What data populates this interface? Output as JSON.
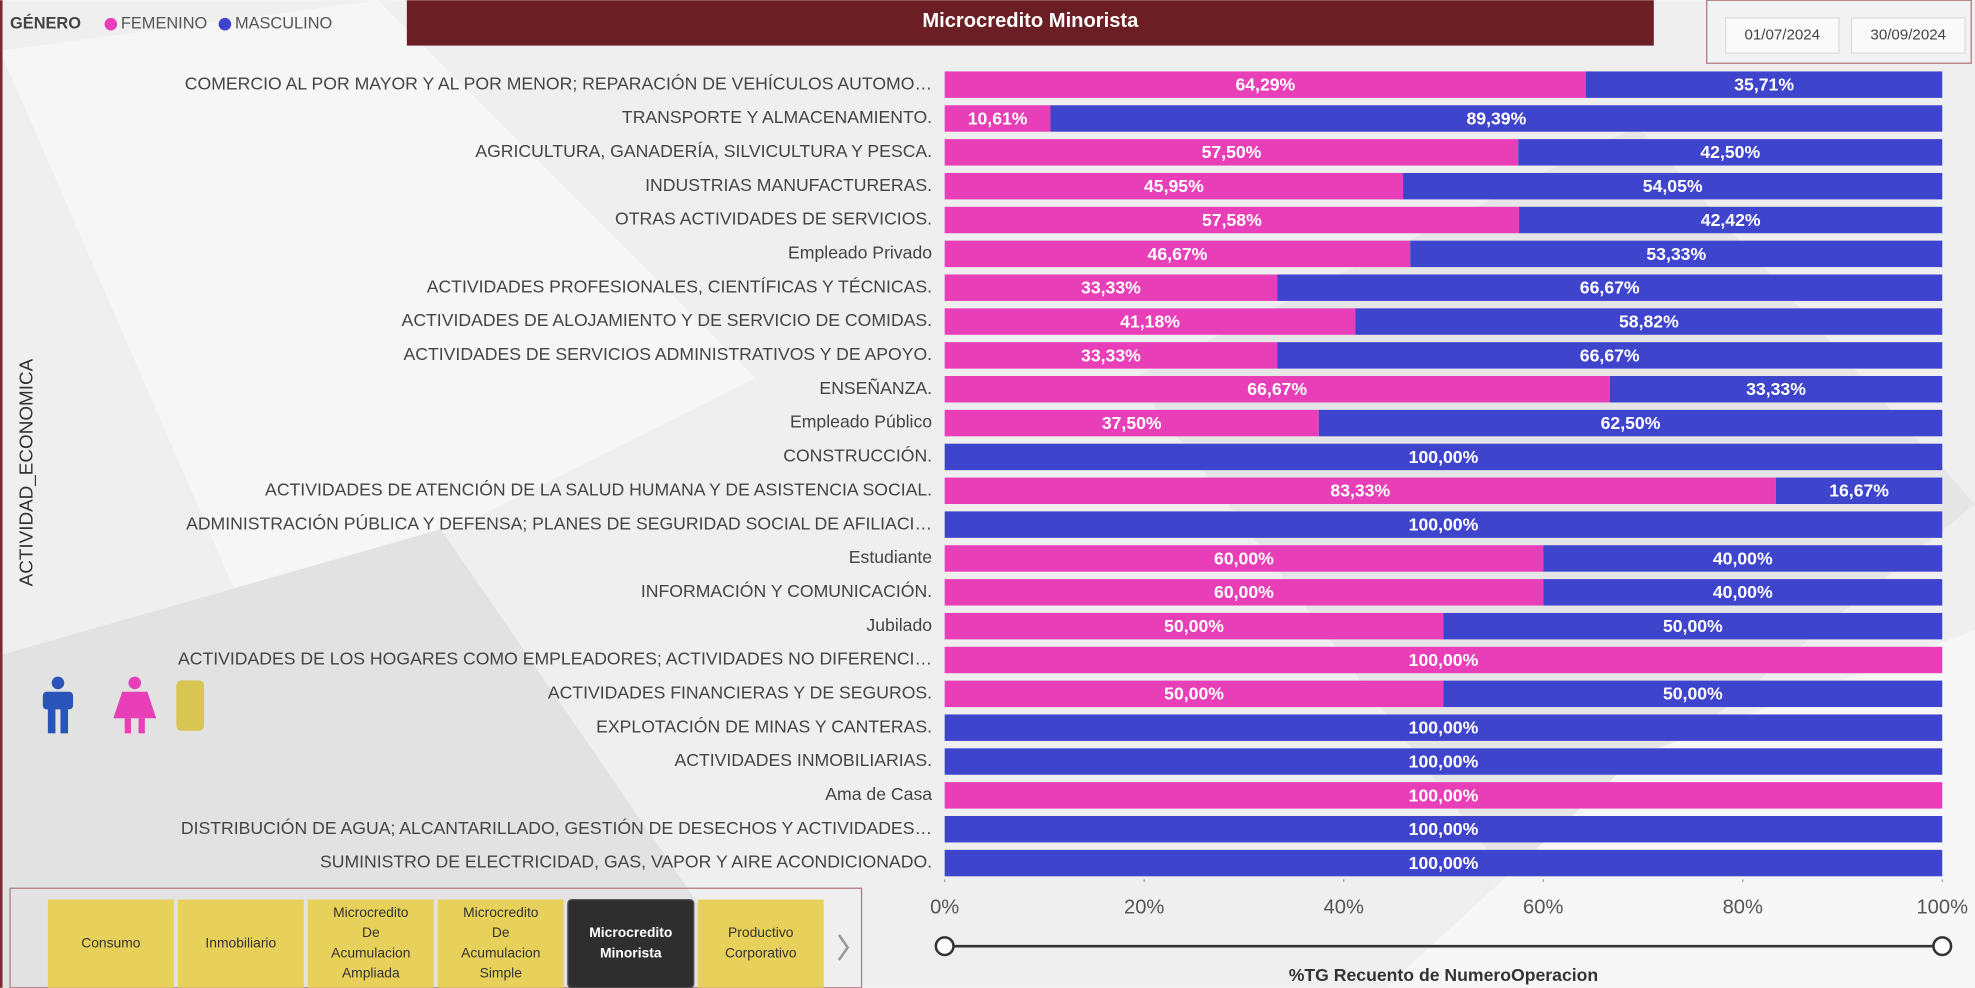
{
  "header": {
    "title": "Microcredito Minorista",
    "date_from": "01/07/2024",
    "date_to": "30/09/2024"
  },
  "tabs": [
    [
      "Consumo"
    ],
    [
      "Inmobiliario"
    ],
    [
      "Microcredito",
      "De",
      "Acumulacion",
      "Ampliada"
    ],
    [
      "Microcredito",
      "De",
      "Acumulacion",
      "Simple"
    ],
    [
      "Microcredito",
      "Minorista"
    ],
    [
      "Productivo",
      "Corporativo"
    ]
  ],
  "chart_data": {
    "type": "stacked_barh",
    "legend_title": "GÉNERO",
    "y_label": "ACTIVIDAD_ECONOMICA",
    "x_label": "%TG Recuento de NumeroOperacion",
    "categories": [
      "COMERCIO AL POR MAYOR Y AL POR MENOR; REPARACIÓN DE VEHÍCULOS AUTOMO…",
      "TRANSPORTE Y ALMACENAMIENTO.",
      "AGRICULTURA, GANADERÍA, SILVICULTURA Y PESCA.",
      "INDUSTRIAS MANUFACTURERAS.",
      "OTRAS ACTIVIDADES DE SERVICIOS.",
      "Empleado Privado",
      "ACTIVIDADES PROFESIONALES, CIENTÍFICAS Y TÉCNICAS.",
      "ACTIVIDADES DE ALOJAMIENTO Y DE SERVICIO DE COMIDAS.",
      "ACTIVIDADES DE SERVICIOS ADMINISTRATIVOS Y DE APOYO.",
      "ENSEÑANZA.",
      "Empleado Público",
      "CONSTRUCCIÓN.",
      "ACTIVIDADES DE ATENCIÓN DE LA SALUD HUMANA Y DE ASISTENCIA SOCIAL.",
      "ADMINISTRACIÓN PÚBLICA Y DEFENSA; PLANES DE SEGURIDAD SOCIAL DE AFILIACI…",
      "Estudiante",
      "INFORMACIÓN Y COMUNICACIÓN.",
      "Jubilado",
      "ACTIVIDADES DE LOS HOGARES COMO EMPLEADORES; ACTIVIDADES NO DIFERENCI…",
      "ACTIVIDADES FINANCIERAS Y DE SEGUROS.",
      "EXPLOTACIÓN DE MINAS Y CANTERAS.",
      "ACTIVIDADES INMOBILIARIAS.",
      "Ama de Casa",
      "DISTRIBUCIÓN DE AGUA; ALCANTARILLADO, GESTIÓN DE DESECHOS Y ACTIVIDADES…",
      "SUMINISTRO DE ELECTRICIDAD, GAS, VAPOR Y AIRE ACONDICIONADO."
    ],
    "series": [
      {
        "name": "FEMENINO",
        "color": "#e83fb8",
        "values": [
          64.29,
          10.61,
          57.5,
          45.95,
          57.58,
          46.67,
          33.33,
          41.18,
          33.33,
          66.67,
          37.5,
          null,
          83.33,
          null,
          60,
          60,
          50,
          100,
          50,
          null,
          null,
          100,
          null,
          null
        ],
        "value_labels": [
          "64,29%",
          "10,61%",
          "57,50%",
          "45,95%",
          "57,58%",
          "46,67%",
          "33,33%",
          "41,18%",
          "33,33%",
          "66,67%",
          "37,50%",
          null,
          "83,33%",
          null,
          "60,00%",
          "60,00%",
          "50,00%",
          "100,00%",
          "50,00%",
          null,
          null,
          "100,00%",
          null,
          null
        ]
      },
      {
        "name": "MASCULINO",
        "color": "#3f44cc",
        "values": [
          35.71,
          89.39,
          42.5,
          54.05,
          42.42,
          53.33,
          66.67,
          58.82,
          66.67,
          33.33,
          62.5,
          100,
          16.67,
          100,
          40,
          40,
          50,
          null,
          50,
          100,
          100,
          null,
          100,
          100
        ],
        "value_labels": [
          "35,71%",
          "89,39%",
          "42,50%",
          "54,05%",
          "42,42%",
          "53,33%",
          "66,67%",
          "58,82%",
          "66,67%",
          "33,33%",
          "62,50%",
          "100,00%",
          "16,67%",
          "100,00%",
          "40,00%",
          "40,00%",
          "50,00%",
          null,
          "50,00%",
          "100,00%",
          "100,00%",
          null,
          "100,00%",
          "100,00%"
        ]
      }
    ],
    "xlim": [
      0,
      100
    ],
    "xticks": [
      {
        "value": 0,
        "label": "0%"
      },
      {
        "value": 20,
        "label": "20%"
      },
      {
        "value": 40,
        "label": "40%"
      },
      {
        "value": 60,
        "label": "60%"
      },
      {
        "value": 80,
        "label": "80%"
      },
      {
        "value": 100,
        "label": "100%"
      }
    ]
  }
}
